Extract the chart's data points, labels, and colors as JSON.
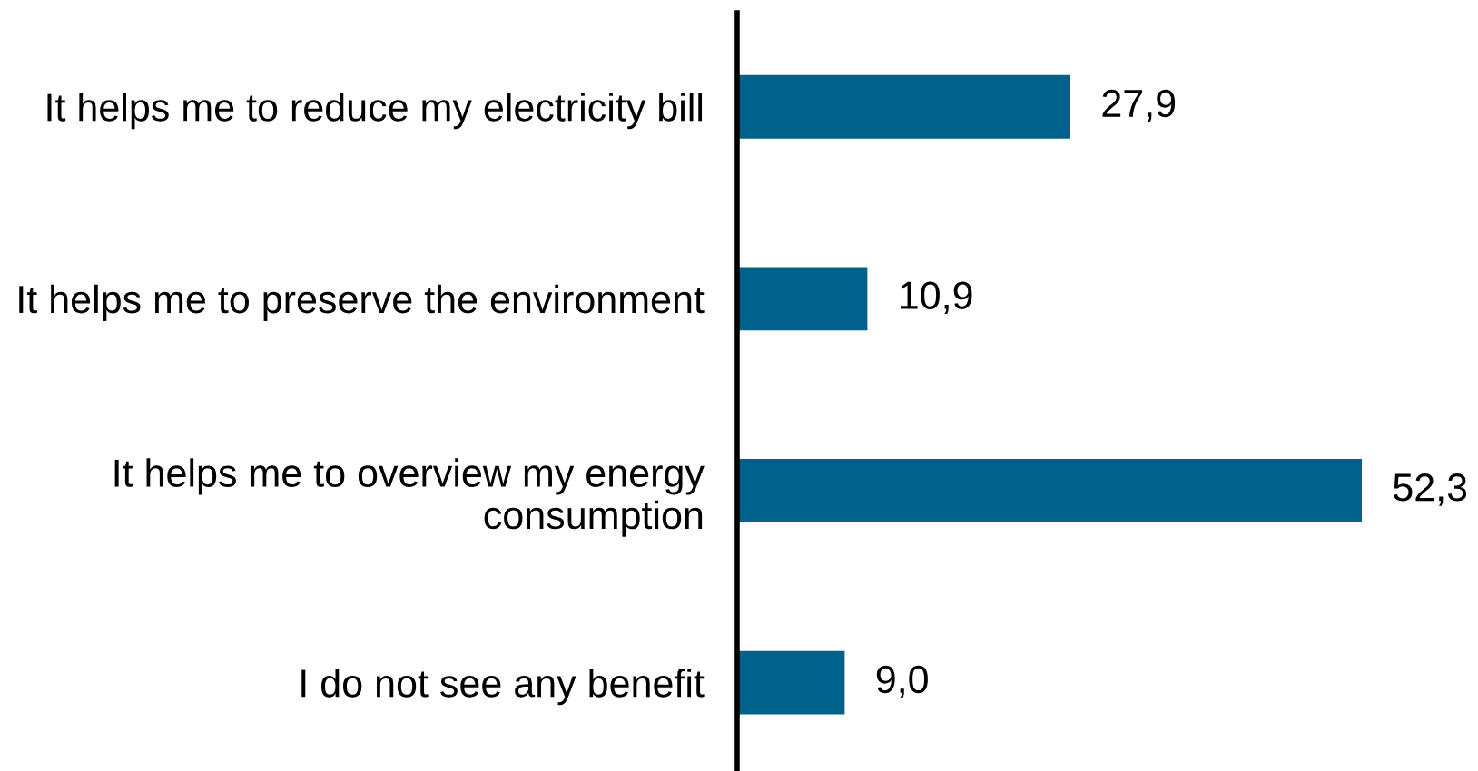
{
  "chart_data": {
    "type": "bar",
    "orientation": "horizontal",
    "categories": [
      "It helps me to reduce my electricity bill",
      "It helps me to preserve the environment",
      "It helps me to overview my energy\nconsumption",
      "I do not see any benefit"
    ],
    "values": [
      27.9,
      10.9,
      52.3,
      9.0
    ],
    "value_labels": [
      "27,9",
      "10,9",
      "52,3",
      "9,0"
    ],
    "color": "#00628a",
    "tick_labels": "y"
  }
}
